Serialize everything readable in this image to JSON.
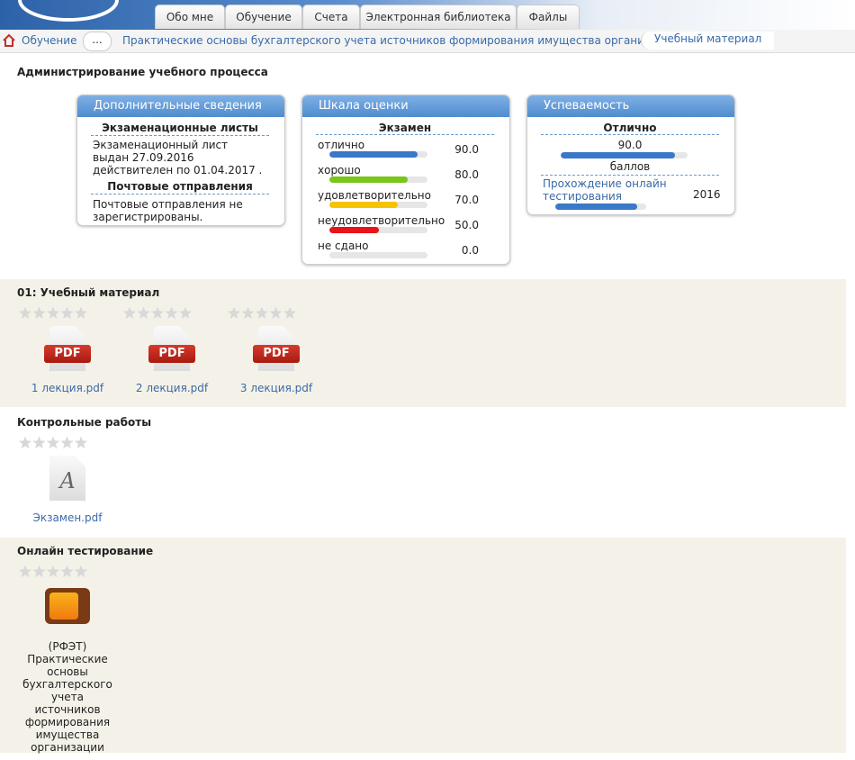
{
  "header": {
    "tabs": [
      "Обо мне",
      "Обучение",
      "Счета",
      "Электронная библиотека",
      "Файлы"
    ]
  },
  "breadcrumb": [
    "Обучение",
    "...",
    "Практические основы бухгалтерского учета источников формирования имущества организации",
    "Учебный материал"
  ],
  "page_title": "Администрирование учебного процесса",
  "cards": {
    "info": {
      "title": "Дополнительные сведения",
      "exam_heading": "Экзаменационные листы",
      "exam_text": "Экзаменационный лист выдан 27.09.2016 действителен по 01.04.2017 .",
      "mail_heading": "Почтовые отправления",
      "mail_text": "Почтовые отправления не зарегистрированы."
    },
    "scale": {
      "title": "Шкала оценки",
      "heading": "Экзамен",
      "grades": [
        {
          "name": "отлично",
          "score": {
            "value": 90,
            "label": "90.0"
          },
          "color": "#3a78c8"
        },
        {
          "name": "хорошо",
          "score": {
            "value": 80,
            "label": "80.0"
          },
          "color": "#7ac51a"
        },
        {
          "name": "удовлетворительно",
          "score": {
            "value": 70,
            "label": "70.0"
          },
          "color": "#f5c400"
        },
        {
          "name": "неудовлетворительно",
          "score": {
            "value": 50,
            "label": "50.0"
          },
          "color": "#e8141a"
        },
        {
          "name": "не сдано",
          "score": {
            "value": 0,
            "label": "0.0"
          },
          "color": "#3a78c8"
        }
      ]
    },
    "progress": {
      "title": "Успеваемость",
      "grade": "Отлично",
      "score": {
        "value": 90,
        "label": "90.0"
      },
      "unit": "баллов",
      "test_link": "Прохождение онлайн тестирования",
      "year": 2016,
      "color": "#3a78c8"
    }
  },
  "sections": [
    {
      "title": "01: Учебный материал",
      "files": [
        {
          "name": "1 лекция.pdf",
          "icon": "PDF"
        },
        {
          "name": "2 лекция.pdf",
          "icon": "PDF"
        },
        {
          "name": "3 лекция.pdf",
          "icon": "PDF"
        }
      ]
    },
    {
      "title": "Контрольные работы",
      "files": [
        {
          "name": "Экзамен.pdf",
          "icon": "A"
        }
      ]
    },
    {
      "title": "Онлайн тестирование",
      "files": [
        {
          "name": "(РФЭТ) Практические основы бухгалтерского учета источников формирования имущества организации"
        }
      ]
    }
  ]
}
